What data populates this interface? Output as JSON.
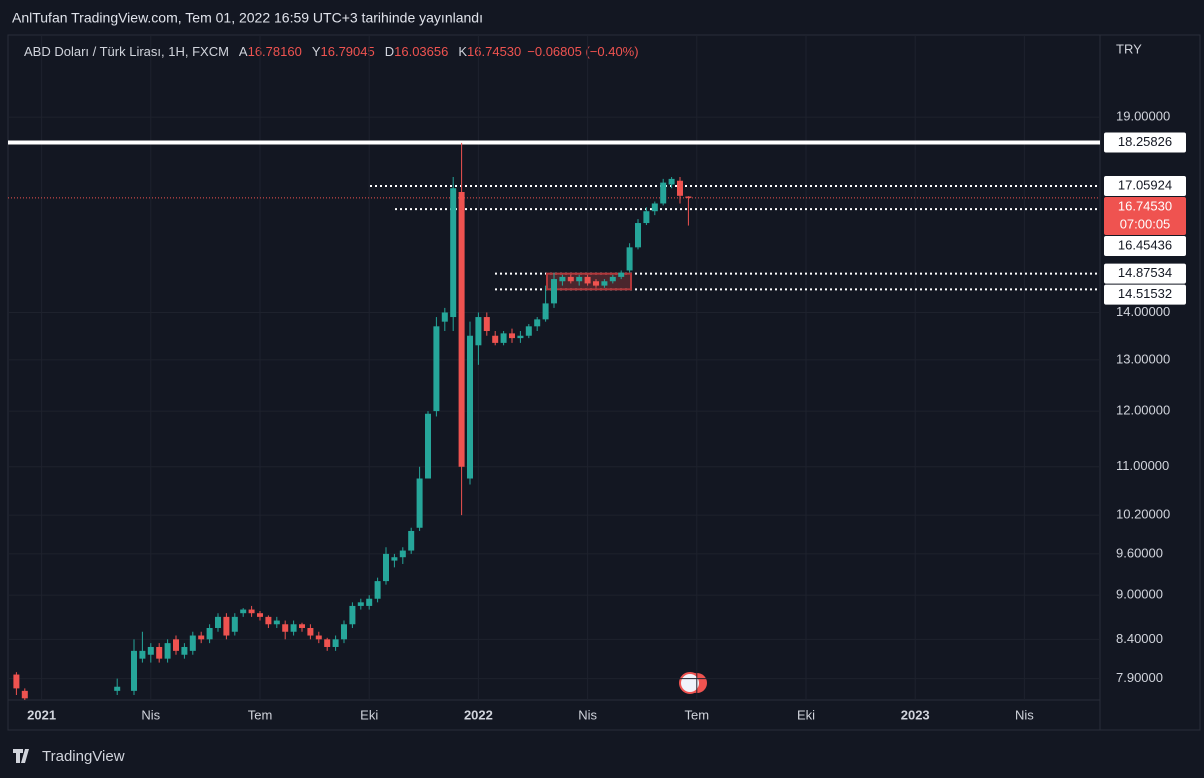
{
  "header": {
    "title": "AnlTufan TradingView.com, Tem 01, 2022 16:59 UTC+3 tarihinde yayınlandı"
  },
  "chart_data": {
    "type": "candlestick",
    "title": "ABD Doları / Türk Lirası, 1H, FXCM",
    "legend_items": [
      {
        "label": "A",
        "text": "16.78160"
      },
      {
        "label": "Y",
        "text": "16.79045"
      },
      {
        "label": "D",
        "text": "16.03656"
      },
      {
        "label": "K",
        "text": "16.74530"
      }
    ],
    "change": "−0.06805 (−0.40%)",
    "currency": "TRY",
    "x": [
      0,
      1,
      12,
      14,
      15,
      16,
      17,
      18,
      19,
      20,
      21,
      22,
      23,
      24,
      25,
      26,
      27,
      28,
      29,
      30,
      31,
      32,
      33,
      34,
      35,
      36,
      37,
      38,
      39,
      40,
      41,
      42,
      43,
      44,
      45,
      46,
      47,
      48,
      49,
      50,
      51,
      52,
      53,
      54,
      55,
      56,
      57,
      58,
      59,
      60,
      61,
      62,
      63,
      64,
      65,
      66,
      67,
      68,
      69,
      70,
      71,
      72,
      73,
      74,
      75,
      76,
      77,
      78,
      79,
      80
    ],
    "open": [
      7.95,
      7.75,
      7.75,
      7.75,
      8.15,
      8.2,
      8.3,
      8.15,
      8.4,
      8.2,
      8.25,
      8.45,
      8.4,
      8.55,
      8.7,
      8.5,
      8.75,
      8.8,
      8.75,
      8.7,
      8.6,
      8.6,
      8.5,
      8.6,
      8.55,
      8.45,
      8.4,
      8.3,
      8.4,
      8.6,
      8.85,
      8.85,
      8.95,
      9.2,
      9.5,
      9.55,
      9.65,
      10.0,
      10.8,
      12.0,
      13.8,
      13.9,
      16.9,
      10.8,
      13.3,
      13.9,
      13.5,
      13.35,
      13.55,
      13.45,
      13.5,
      13.7,
      13.85,
      14.2,
      14.7,
      14.8,
      14.7,
      14.8,
      14.7,
      14.6,
      14.7,
      14.8,
      14.95,
      15.5,
      16.1,
      16.4,
      16.6,
      17.1,
      17.2,
      16.7816
    ],
    "high": [
      7.98,
      7.78,
      7.9,
      8.4,
      8.5,
      8.35,
      8.35,
      8.4,
      8.45,
      8.35,
      8.5,
      8.5,
      8.6,
      8.75,
      8.75,
      8.75,
      8.82,
      8.85,
      8.78,
      8.72,
      8.7,
      8.65,
      8.65,
      8.62,
      8.6,
      8.5,
      8.42,
      8.45,
      8.65,
      8.9,
      8.95,
      9.0,
      9.25,
      9.7,
      9.6,
      9.7,
      10.0,
      11.0,
      12.0,
      13.9,
      14.1,
      17.3,
      18.25,
      13.8,
      14.0,
      14.0,
      13.6,
      13.6,
      13.65,
      13.6,
      13.75,
      13.9,
      14.6,
      14.9,
      14.85,
      14.85,
      14.85,
      14.85,
      14.75,
      14.75,
      14.85,
      14.95,
      15.6,
      16.2,
      16.5,
      16.65,
      17.25,
      17.3,
      17.3,
      16.79045
    ],
    "low": [
      7.7,
      7.6,
      7.7,
      7.7,
      8.1,
      8.1,
      8.1,
      8.1,
      8.2,
      8.15,
      8.2,
      8.35,
      8.35,
      8.5,
      8.4,
      8.45,
      8.7,
      8.7,
      8.65,
      8.55,
      8.55,
      8.4,
      8.45,
      8.5,
      8.4,
      8.35,
      8.25,
      8.25,
      8.35,
      8.55,
      8.8,
      8.8,
      8.9,
      9.15,
      9.4,
      9.45,
      9.6,
      9.95,
      10.8,
      11.9,
      13.6,
      13.6,
      10.2,
      10.7,
      12.9,
      13.5,
      13.3,
      13.3,
      13.35,
      13.35,
      13.45,
      13.6,
      13.8,
      14.1,
      14.6,
      14.65,
      14.6,
      14.6,
      14.55,
      14.55,
      14.65,
      14.75,
      14.9,
      15.45,
      16.05,
      16.3,
      16.55,
      17.0,
      16.6,
      16.03656
    ],
    "close": [
      7.78,
      7.66,
      7.8,
      8.25,
      8.25,
      8.3,
      8.15,
      8.35,
      8.25,
      8.3,
      8.45,
      8.4,
      8.55,
      8.7,
      8.45,
      8.7,
      8.8,
      8.75,
      8.7,
      8.6,
      8.65,
      8.5,
      8.6,
      8.55,
      8.45,
      8.4,
      8.3,
      8.4,
      8.6,
      8.85,
      8.9,
      8.95,
      9.2,
      9.6,
      9.55,
      9.65,
      9.95,
      10.8,
      11.95,
      13.7,
      14.0,
      17.0,
      11.0,
      13.5,
      13.9,
      13.6,
      13.35,
      13.55,
      13.45,
      13.5,
      13.7,
      13.85,
      14.2,
      14.75,
      14.8,
      14.7,
      14.8,
      14.65,
      14.6,
      14.7,
      14.8,
      14.9,
      15.5,
      16.1,
      16.4,
      16.6,
      17.15,
      17.25,
      16.8,
      16.7453
    ],
    "up_color": "#26a69a",
    "down_color": "#ef5350",
    "xlim": [
      -1,
      129
    ],
    "xticks": [
      {
        "value": 3,
        "label": "2021"
      },
      {
        "value": 16,
        "label": "Nis"
      },
      {
        "value": 29,
        "label": "Tem"
      },
      {
        "value": 42,
        "label": "Eki"
      },
      {
        "value": 55,
        "label": "2022"
      },
      {
        "value": 68,
        "label": "Nis"
      },
      {
        "value": 81,
        "label": "Tem"
      },
      {
        "value": 94,
        "label": "Eki"
      },
      {
        "value": 107,
        "label": "2023"
      },
      {
        "value": 120,
        "label": "Nis"
      }
    ],
    "ylim": [
      7.64,
      21.6
    ],
    "log_scale": true,
    "grid": true,
    "yticks": [
      {
        "value": 7.9,
        "label": "7.90000"
      },
      {
        "value": 8.4,
        "label": "8.40000"
      },
      {
        "value": 9.0,
        "label": "9.00000"
      },
      {
        "value": 9.6,
        "label": "9.60000"
      },
      {
        "value": 10.2,
        "label": "10.20000"
      },
      {
        "value": 11,
        "label": "11.00000"
      },
      {
        "value": 12,
        "label": "12.00000"
      },
      {
        "value": 13,
        "label": "13.00000"
      },
      {
        "value": 14,
        "label": "14.00000"
      },
      {
        "value": 19,
        "label": "19.00000"
      }
    ],
    "levels": [
      {
        "value": 18.25826,
        "label": "18.25826"
      },
      {
        "value": 17.05924,
        "label": "17.05924"
      },
      {
        "value": 16.45436,
        "label": "16.45436"
      },
      {
        "value": 14.87534,
        "label": "14.87534"
      },
      {
        "value": 14.51532,
        "label": "14.51532"
      }
    ],
    "last_price": {
      "value": 16.7453,
      "label": "16.74530",
      "countdown": "07:00:05"
    }
  },
  "footer": {
    "brand": "TradingView"
  }
}
